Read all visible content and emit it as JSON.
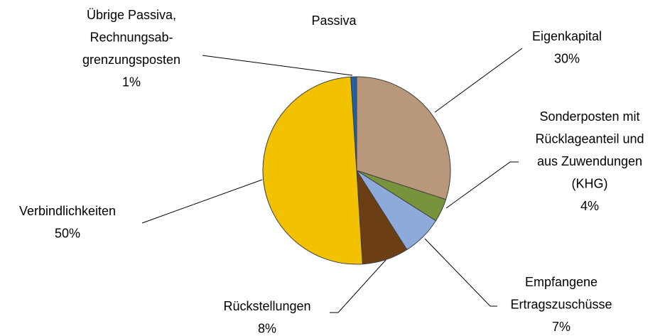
{
  "chart_data": {
    "type": "pie",
    "title": "Passiva",
    "labels": [
      [
        "Eigenkapital"
      ],
      [
        "Sonderposten mit",
        "Rücklageanteil und",
        "aus Zuwendungen",
        "(KHG)"
      ],
      [
        "Empfangene",
        "Ertragszuschüsse"
      ],
      [
        "Rückstellungen"
      ],
      [
        "Verbindlichkeiten"
      ],
      [
        "Übrige Passiva,",
        "Rechnungsab-",
        "grenzungsposten"
      ]
    ],
    "values": [
      30,
      4,
      7,
      8,
      50,
      1
    ],
    "value_labels": [
      "30%",
      "4%",
      "7%",
      "8%",
      "50%",
      "1%"
    ],
    "colors": [
      "#b8977a",
      "#77933c",
      "#8eaadb",
      "#6b3e14",
      "#f2c100",
      "#1f5fa8"
    ]
  }
}
